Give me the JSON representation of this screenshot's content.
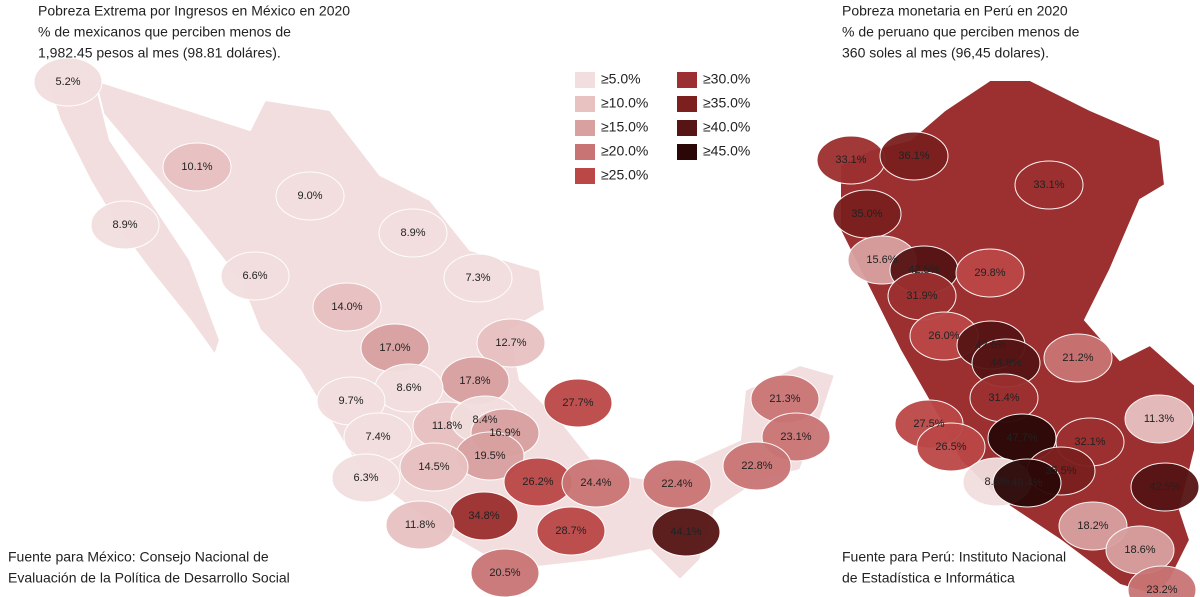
{
  "mexico": {
    "title": "Pobreza Extrema por Ingresos en México en 2020",
    "subtitle": [
      "% de mexicanos que perciben menos de",
      "1,982.45 pesos al mes (98.81 doláres)."
    ],
    "source": [
      "Fuente para México: Consejo Nacional de",
      "Evaluación de la Política de Desarrollo Social"
    ],
    "regions": [
      {
        "label": "5.2%",
        "color": "#f2dede"
      },
      {
        "label": "10.1%",
        "color": "#e8c1c1"
      },
      {
        "label": "9.0%",
        "color": "#f2dede"
      },
      {
        "label": "8.9%",
        "color": "#f2dede"
      },
      {
        "label": "8.9%",
        "color": "#f2dede"
      },
      {
        "label": "6.6%",
        "color": "#f2dede"
      },
      {
        "label": "7.3%",
        "color": "#f2dede"
      },
      {
        "label": "14.0%",
        "color": "#e8c1c1"
      },
      {
        "label": "12.7%",
        "color": "#e8c1c1"
      },
      {
        "label": "17.0%",
        "color": "#d9a0a0"
      },
      {
        "label": "17.8%",
        "color": "#d9a0a0"
      },
      {
        "label": "8.6%",
        "color": "#f2dede"
      },
      {
        "label": "9.7%",
        "color": "#f2dede"
      },
      {
        "label": "27.7%",
        "color": "#bb4747"
      },
      {
        "label": "11.8%",
        "color": "#e8c1c1"
      },
      {
        "label": "8.4%",
        "color": "#f2dede"
      },
      {
        "label": "7.4%",
        "color": "#f2dede"
      },
      {
        "label": "16.9%",
        "color": "#d9a0a0"
      },
      {
        "label": "21.3%",
        "color": "#c97474"
      },
      {
        "label": "23.1%",
        "color": "#c97474"
      },
      {
        "label": "19.5%",
        "color": "#d9a0a0"
      },
      {
        "label": "14.5%",
        "color": "#e8c1c1"
      },
      {
        "label": "6.3%",
        "color": "#f2dede"
      },
      {
        "label": "26.2%",
        "color": "#bb4747"
      },
      {
        "label": "24.4%",
        "color": "#c97474"
      },
      {
        "label": "22.4%",
        "color": "#c97474"
      },
      {
        "label": "22.8%",
        "color": "#c97474"
      },
      {
        "label": "34.8%",
        "color": "#9c2f2f"
      },
      {
        "label": "11.8%",
        "color": "#e8c1c1"
      },
      {
        "label": "28.7%",
        "color": "#bb4747"
      },
      {
        "label": "44.1%",
        "color": "#561414"
      },
      {
        "label": "20.5%",
        "color": "#c97474"
      }
    ]
  },
  "peru": {
    "title": "Pobreza monetaria en Perú en 2020",
    "subtitle": [
      "% de peruano que perciben menos de",
      "360 soles al mes (96,45 dolares)."
    ],
    "source": [
      "Fuente para Perú: Instituto Nacional",
      "de Estadística e Informática"
    ],
    "regions": [
      {
        "label": "33.1%",
        "color": "#9c2f2f"
      },
      {
        "label": "36.1%",
        "color": "#7b1f1f"
      },
      {
        "label": "33.1%",
        "color": "#9c2f2f"
      },
      {
        "label": "35.0%",
        "color": "#7b1f1f"
      },
      {
        "label": "15.6%",
        "color": "#d9a0a0"
      },
      {
        "label": "42.5%",
        "color": "#561414"
      },
      {
        "label": "29.8%",
        "color": "#bb4747"
      },
      {
        "label": "31.9%",
        "color": "#9c2f2f"
      },
      {
        "label": "26.0%",
        "color": "#bb4747"
      },
      {
        "label": "42.6%",
        "color": "#561414"
      },
      {
        "label": "44.8%",
        "color": "#561414"
      },
      {
        "label": "21.2%",
        "color": "#c97474"
      },
      {
        "label": "31.4%",
        "color": "#9c2f2f"
      },
      {
        "label": "11.3%",
        "color": "#e8c1c1"
      },
      {
        "label": "27.5%",
        "color": "#bb4747"
      },
      {
        "label": "26.5%",
        "color": "#bb4747"
      },
      {
        "label": "47.7%",
        "color": "#2b0707"
      },
      {
        "label": "32.1%",
        "color": "#9c2f2f"
      },
      {
        "label": "35.5%",
        "color": "#7b1f1f"
      },
      {
        "label": "8.5%",
        "color": "#f2dede"
      },
      {
        "label": "46.4%",
        "color": "#2b0707"
      },
      {
        "label": "42.5%",
        "color": "#561414"
      },
      {
        "label": "18.2%",
        "color": "#d9a0a0"
      },
      {
        "label": "18.6%",
        "color": "#d9a0a0"
      },
      {
        "label": "23.2%",
        "color": "#c97474"
      }
    ]
  },
  "legend": [
    {
      "label": "≥5.0%",
      "color": "#f2dede"
    },
    {
      "label": "≥10.0%",
      "color": "#e8c1c1"
    },
    {
      "label": "≥15.0%",
      "color": "#d9a0a0"
    },
    {
      "label": "≥20.0%",
      "color": "#c97474"
    },
    {
      "label": "≥25.0%",
      "color": "#bb4747"
    },
    {
      "label": "≥30.0%",
      "color": "#9c2f2f"
    },
    {
      "label": "≥35.0%",
      "color": "#7b1f1f"
    },
    {
      "label": "≥40.0%",
      "color": "#561414"
    },
    {
      "label": "≥45.0%",
      "color": "#2b0707"
    }
  ]
}
